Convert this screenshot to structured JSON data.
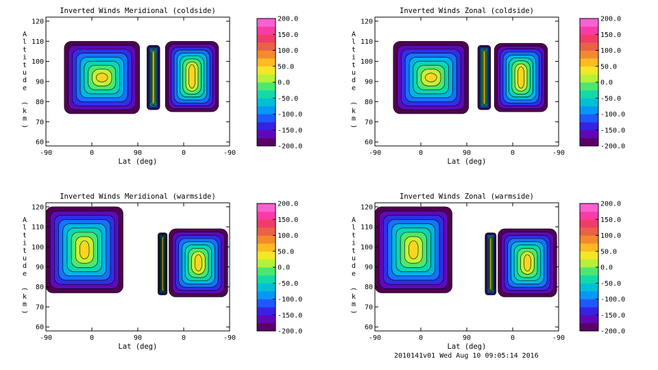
{
  "footer": "2010141v01 Wed Aug 10 09:05:14 2016",
  "chart_data": [
    {
      "type": "heatmap",
      "title": "Inverted Winds Meridional (coldside)",
      "xlabel": "Lat (deg)",
      "ylabel": "Altitude (km)",
      "xticks": [
        "-90",
        "0",
        "90",
        "0",
        "-90"
      ],
      "ylim": [
        58,
        122
      ],
      "yticks": [
        "60",
        "70",
        "80",
        "90",
        "100",
        "110",
        "120"
      ],
      "colorbar": {
        "vmin": -200,
        "vmax": 200,
        "ticks": [
          "200.0",
          "150.0",
          "100.0",
          "50.0",
          "0.0",
          "-50.0",
          "-100.0",
          "-150.0",
          "-200.0"
        ]
      },
      "blobs": [
        {
          "x0": 0.1,
          "x1": 0.51,
          "y0": 74,
          "y1": 110
        },
        {
          "x0": 0.55,
          "x1": 0.62,
          "y0": 76,
          "y1": 108
        },
        {
          "x0": 0.65,
          "x1": 0.94,
          "y0": 75,
          "y1": 110
        }
      ]
    },
    {
      "type": "heatmap",
      "title": "Inverted Winds Zonal (coldside)",
      "xlabel": "Lat (deg)",
      "ylabel": "Altitude (km)",
      "xticks": [
        "-90",
        "0",
        "90",
        "0",
        "-90"
      ],
      "ylim": [
        58,
        122
      ],
      "yticks": [
        "60",
        "70",
        "80",
        "90",
        "100",
        "110",
        "120"
      ],
      "colorbar": {
        "vmin": -200,
        "vmax": 200,
        "ticks": [
          "200.0",
          "150.0",
          "100.0",
          "50.0",
          "0.0",
          "-50.0",
          "-100.0",
          "-150.0",
          "-200.0"
        ]
      },
      "blobs": [
        {
          "x0": 0.1,
          "x1": 0.51,
          "y0": 74,
          "y1": 110
        },
        {
          "x0": 0.56,
          "x1": 0.63,
          "y0": 76,
          "y1": 108
        },
        {
          "x0": 0.65,
          "x1": 0.94,
          "y0": 75,
          "y1": 109
        }
      ]
    },
    {
      "type": "heatmap",
      "title": "Inverted Winds Meridional (warmside)",
      "xlabel": "Lat (deg)",
      "ylabel": "Altitude (km)",
      "xticks": [
        "-90",
        "0",
        "90",
        "0",
        "-90"
      ],
      "ylim": [
        58,
        122
      ],
      "yticks": [
        "60",
        "70",
        "80",
        "90",
        "100",
        "110",
        "120"
      ],
      "colorbar": {
        "vmin": -200,
        "vmax": 200,
        "ticks": [
          "200.0",
          "150.0",
          "100.0",
          "50.0",
          "0.0",
          "-50.0",
          "-100.0",
          "-150.0",
          "-200.0"
        ]
      },
      "blobs": [
        {
          "x0": 0.0,
          "x1": 0.42,
          "y0": 77,
          "y1": 120
        },
        {
          "x0": 0.61,
          "x1": 0.66,
          "y0": 76,
          "y1": 107
        },
        {
          "x0": 0.67,
          "x1": 0.99,
          "y0": 75,
          "y1": 109
        }
      ]
    },
    {
      "type": "heatmap",
      "title": "Inverted Winds Zonal (warmside)",
      "xlabel": "Lat (deg)",
      "ylabel": "Altitude (km)",
      "xticks": [
        "-90",
        "0",
        "90",
        "0",
        "-90"
      ],
      "ylim": [
        58,
        122
      ],
      "yticks": [
        "60",
        "70",
        "80",
        "90",
        "100",
        "110",
        "120"
      ],
      "colorbar": {
        "vmin": -200,
        "vmax": 200,
        "ticks": [
          "200.0",
          "150.0",
          "100.0",
          "50.0",
          "0.0",
          "-50.0",
          "-100.0",
          "-150.0",
          "-200.0"
        ]
      },
      "blobs": [
        {
          "x0": 0.0,
          "x1": 0.42,
          "y0": 77,
          "y1": 120
        },
        {
          "x0": 0.6,
          "x1": 0.66,
          "y0": 76,
          "y1": 107
        },
        {
          "x0": 0.67,
          "x1": 0.99,
          "y0": 75,
          "y1": 109
        }
      ]
    }
  ]
}
